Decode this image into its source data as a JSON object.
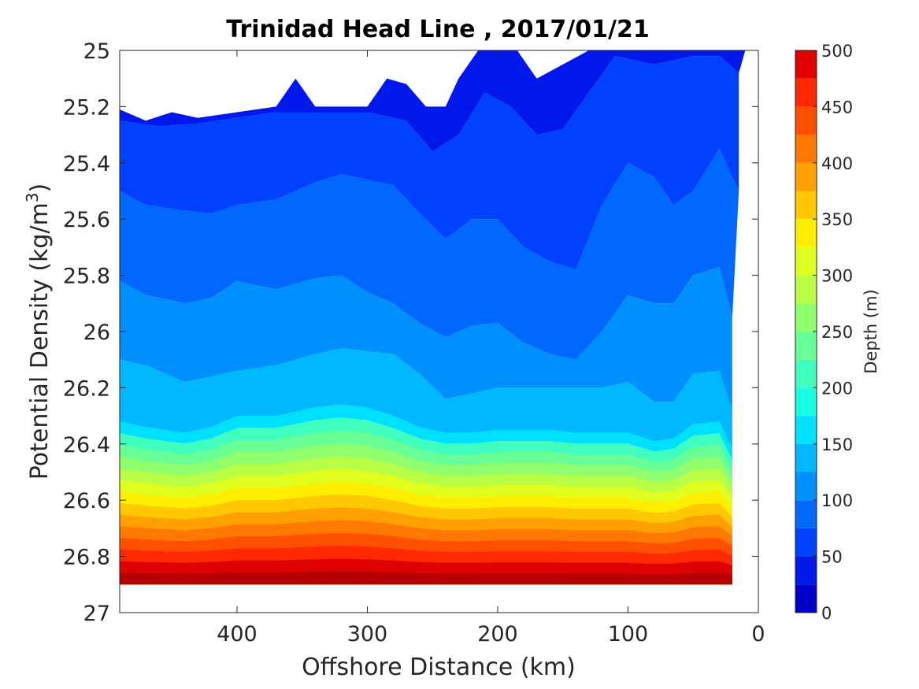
{
  "chart_data": {
    "type": "filled-contour",
    "title": "Trinidad Head Line , 2017/01/21",
    "xlabel": "Offshore Distance (km)",
    "ylabel_main": "Potential Density (kg/m",
    "ylabel_sup": "3",
    "ylabel_close": ")",
    "xlim": [
      490,
      0
    ],
    "xdirection": "reversed",
    "ylim": [
      25,
      27
    ],
    "ydirection": "reversed",
    "x_ticks": [
      {
        "value": 400,
        "label": "400"
      },
      {
        "value": 300,
        "label": "300"
      },
      {
        "value": 200,
        "label": "200"
      },
      {
        "value": 100,
        "label": "100"
      },
      {
        "value": 0,
        "label": "0"
      }
    ],
    "y_ticks": [
      {
        "value": 25.0,
        "label": "25"
      },
      {
        "value": 25.2,
        "label": "25.2"
      },
      {
        "value": 25.4,
        "label": "25.4"
      },
      {
        "value": 25.6,
        "label": "25.6"
      },
      {
        "value": 25.8,
        "label": "25.8"
      },
      {
        "value": 26.0,
        "label": "26"
      },
      {
        "value": 26.2,
        "label": "26.2"
      },
      {
        "value": 26.4,
        "label": "26.4"
      },
      {
        "value": 26.6,
        "label": "26.6"
      },
      {
        "value": 26.8,
        "label": "26.8"
      },
      {
        "value": 27.0,
        "label": "27"
      }
    ],
    "colorbar": {
      "label": "Depth (m)",
      "range": [
        0,
        500
      ],
      "levels": [
        0,
        25,
        50,
        75,
        100,
        125,
        150,
        175,
        200,
        225,
        250,
        275,
        300,
        325,
        350,
        375,
        400,
        425,
        450,
        475,
        500
      ],
      "colors": [
        "#00009a",
        "#0000c8",
        "#0018ec",
        "#0040ff",
        "#0068ff",
        "#0090ff",
        "#00b8ff",
        "#00e0ff",
        "#18ffe6",
        "#40ffbe",
        "#68ff96",
        "#90ff6e",
        "#b8ff46",
        "#e0ff1e",
        "#ffee00",
        "#ffc800",
        "#ffa000",
        "#ff7800",
        "#ff5000",
        "#ff2800",
        "#e00000",
        "#b40000"
      ],
      "tick_labels": [
        "0",
        "50",
        "100",
        "150",
        "200",
        "250",
        "300",
        "350",
        "400",
        "450",
        "500"
      ]
    },
    "grid": false,
    "section_top_density": 25.2,
    "bottom_density_profile": [
      {
        "x": 490,
        "y": 26.9
      },
      {
        "x": 300,
        "y": 26.9
      },
      {
        "x": 200,
        "y": 26.9
      },
      {
        "x": 100,
        "y": 26.9
      },
      {
        "x": 30,
        "y": 26.9
      }
    ],
    "contours": [
      {
        "level": 25,
        "points": [
          [
            490,
            25.21
          ],
          [
            470,
            25.25
          ],
          [
            450,
            25.22
          ],
          [
            430,
            25.24
          ],
          [
            400,
            25.22
          ],
          [
            370,
            25.2
          ],
          [
            355,
            25.1
          ],
          [
            340,
            25.2
          ],
          [
            300,
            25.2
          ],
          [
            285,
            25.1
          ],
          [
            270,
            25.12
          ],
          [
            255,
            25.2
          ],
          [
            240,
            25.2
          ],
          [
            230,
            25.1
          ],
          [
            215,
            25.0
          ],
          [
            200,
            25.0
          ],
          [
            185,
            25.0
          ],
          [
            170,
            25.1
          ],
          [
            150,
            25.05
          ],
          [
            130,
            25.0
          ],
          [
            100,
            25.0
          ],
          [
            60,
            25.0
          ],
          [
            30,
            25.0
          ],
          [
            10,
            25.0
          ]
        ]
      },
      {
        "level": 50,
        "points": [
          [
            490,
            25.25
          ],
          [
            460,
            25.27
          ],
          [
            430,
            25.26
          ],
          [
            400,
            25.24
          ],
          [
            370,
            25.22
          ],
          [
            340,
            25.22
          ],
          [
            300,
            25.22
          ],
          [
            270,
            25.25
          ],
          [
            250,
            25.36
          ],
          [
            230,
            25.3
          ],
          [
            210,
            25.15
          ],
          [
            190,
            25.2
          ],
          [
            170,
            25.3
          ],
          [
            150,
            25.28
          ],
          [
            130,
            25.15
          ],
          [
            110,
            25.02
          ],
          [
            80,
            25.05
          ],
          [
            50,
            25.02
          ],
          [
            30,
            25.02
          ],
          [
            15,
            25.08
          ]
        ]
      },
      {
        "level": 75,
        "points": [
          [
            490,
            25.5
          ],
          [
            470,
            25.55
          ],
          [
            440,
            25.57
          ],
          [
            420,
            25.58
          ],
          [
            400,
            25.55
          ],
          [
            370,
            25.53
          ],
          [
            340,
            25.47
          ],
          [
            320,
            25.44
          ],
          [
            300,
            25.46
          ],
          [
            280,
            25.48
          ],
          [
            260,
            25.58
          ],
          [
            240,
            25.67
          ],
          [
            220,
            25.6
          ],
          [
            200,
            25.6
          ],
          [
            180,
            25.7
          ],
          [
            160,
            25.75
          ],
          [
            140,
            25.78
          ],
          [
            120,
            25.55
          ],
          [
            100,
            25.4
          ],
          [
            80,
            25.45
          ],
          [
            65,
            25.55
          ],
          [
            50,
            25.5
          ],
          [
            30,
            25.35
          ],
          [
            15,
            25.5
          ]
        ]
      },
      {
        "level": 100,
        "points": [
          [
            490,
            25.82
          ],
          [
            470,
            25.87
          ],
          [
            440,
            25.9
          ],
          [
            420,
            25.88
          ],
          [
            400,
            25.82
          ],
          [
            370,
            25.85
          ],
          [
            340,
            25.81
          ],
          [
            320,
            25.8
          ],
          [
            300,
            25.86
          ],
          [
            280,
            25.9
          ],
          [
            260,
            25.97
          ],
          [
            240,
            26.02
          ],
          [
            220,
            25.98
          ],
          [
            200,
            25.97
          ],
          [
            180,
            26.04
          ],
          [
            160,
            26.08
          ],
          [
            140,
            26.1
          ],
          [
            120,
            26.0
          ],
          [
            100,
            25.87
          ],
          [
            80,
            25.9
          ],
          [
            65,
            25.9
          ],
          [
            50,
            25.8
          ],
          [
            30,
            25.77
          ],
          [
            20,
            25.95
          ]
        ]
      },
      {
        "level": 125,
        "points": [
          [
            490,
            26.1
          ],
          [
            470,
            26.12
          ],
          [
            440,
            26.18
          ],
          [
            420,
            26.16
          ],
          [
            400,
            26.14
          ],
          [
            370,
            26.12
          ],
          [
            340,
            26.08
          ],
          [
            320,
            26.06
          ],
          [
            300,
            26.07
          ],
          [
            280,
            26.08
          ],
          [
            260,
            26.15
          ],
          [
            240,
            26.24
          ],
          [
            220,
            26.22
          ],
          [
            200,
            26.2
          ],
          [
            180,
            26.2
          ],
          [
            160,
            26.2
          ],
          [
            140,
            26.2
          ],
          [
            120,
            26.2
          ],
          [
            100,
            26.18
          ],
          [
            80,
            26.25
          ],
          [
            65,
            26.25
          ],
          [
            50,
            26.15
          ],
          [
            30,
            26.14
          ],
          [
            20,
            26.28
          ]
        ]
      },
      {
        "level": 150,
        "points": [
          [
            490,
            26.32
          ],
          [
            470,
            26.34
          ],
          [
            440,
            26.36
          ],
          [
            420,
            26.34
          ],
          [
            400,
            26.3
          ],
          [
            370,
            26.3
          ],
          [
            340,
            26.27
          ],
          [
            320,
            26.26
          ],
          [
            300,
            26.27
          ],
          [
            280,
            26.3
          ],
          [
            260,
            26.34
          ],
          [
            240,
            26.36
          ],
          [
            220,
            26.36
          ],
          [
            200,
            26.35
          ],
          [
            180,
            26.35
          ],
          [
            160,
            26.35
          ],
          [
            140,
            26.36
          ],
          [
            120,
            26.36
          ],
          [
            100,
            26.36
          ],
          [
            80,
            26.39
          ],
          [
            65,
            26.38
          ],
          [
            50,
            26.33
          ],
          [
            30,
            26.32
          ],
          [
            20,
            26.42
          ]
        ]
      }
    ]
  }
}
